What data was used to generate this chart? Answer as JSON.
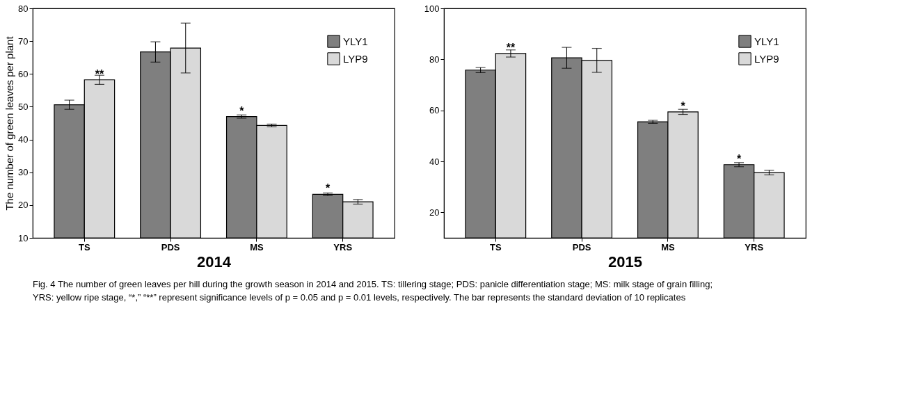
{
  "chart_data": [
    {
      "type": "bar",
      "categories": [
        "TS",
        "PDS",
        "MS",
        "YRS"
      ],
      "xlabel": "2014",
      "ylabel": "The number of green leaves per plant",
      "series": [
        {
          "name": "YLY1",
          "color": "#7f7f7f",
          "values": [
            50.6,
            66.7,
            47.0,
            23.3
          ],
          "errors": [
            1.4,
            3.1,
            0.5,
            0.4
          ]
        },
        {
          "name": "LYP9",
          "color": "#d9d9d9",
          "values": [
            58.2,
            67.9,
            44.3,
            21.0
          ],
          "errors": [
            1.4,
            7.6,
            0.4,
            0.7
          ]
        }
      ],
      "ylim": [
        10,
        80
      ],
      "yticks": [
        10,
        20,
        30,
        40,
        50,
        60,
        70,
        80
      ],
      "grid": false,
      "legend": "top right",
      "annotations": [
        {
          "text": "**",
          "x": "TS",
          "y": 58.2
        },
        {
          "text": "*",
          "x": "MS",
          "y": 47.0
        },
        {
          "text": "*",
          "x": "YRS",
          "y": 23.3
        },
        "Fig. 4 The number of green leaves per hill during the growth season in 2014 and 2015. TS: tillering stage; PDS: panicle differentiation stage; MS: milk stage of grain filling; YRS: yellow ripe stage, “*,” “**” represent significance levels of p = 0.05 and p = 0.01 levels, respectively. The bar represents the standard deviation of 10 replicates"
      ]
    },
    {
      "type": "bar",
      "categories": [
        "TS",
        "PDS",
        "MS",
        "YRS"
      ],
      "xlabel": "2015",
      "series": [
        {
          "name": "YLY1",
          "color": "#7f7f7f",
          "values": [
            75.8,
            80.6,
            55.5,
            38.7
          ],
          "errors": [
            1.0,
            4.1,
            0.6,
            0.8
          ]
        },
        {
          "name": "LYP9",
          "color": "#d9d9d9",
          "values": [
            82.3,
            79.6,
            59.4,
            35.6
          ],
          "errors": [
            1.4,
            4.7,
            1.0,
            0.9
          ]
        }
      ],
      "ylim": [
        10,
        100
      ],
      "yticks": [
        20,
        40,
        60,
        80,
        100
      ],
      "grid": false,
      "legend": "top right",
      "annotations": [
        {
          "text": "**",
          "x": "TS",
          "y": 82.3
        },
        {
          "text": "*",
          "x": "MS",
          "y": 59.4
        },
        {
          "text": "*",
          "x": "YRS",
          "y": 38.7
        }
      ]
    }
  ]
}
